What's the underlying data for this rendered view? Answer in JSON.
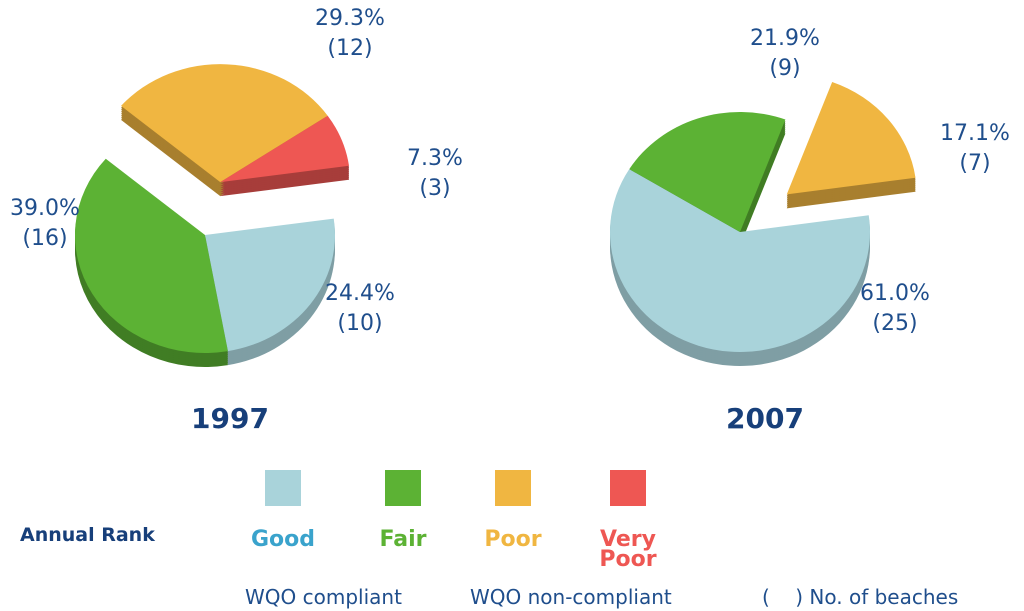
{
  "chart_data": [
    {
      "type": "pie",
      "title": "1997",
      "categories": [
        "Good",
        "Fair",
        "Poor",
        "Very Poor"
      ],
      "values": [
        24.4,
        39.0,
        29.3,
        7.3
      ],
      "value_labels": [
        "24.4%",
        "39.0%",
        "29.3%",
        "7.3%"
      ],
      "counts": [
        10,
        16,
        12,
        3
      ],
      "count_labels": [
        "(10)",
        "(16)",
        "(12)",
        "(3)"
      ],
      "colors": [
        "#a9d3da",
        "#5cb234",
        "#f0b641",
        "#ee5753"
      ],
      "exploded": [
        false,
        false,
        true,
        true
      ]
    },
    {
      "type": "pie",
      "title": "2007",
      "categories": [
        "Good",
        "Fair",
        "Poor"
      ],
      "values": [
        61.0,
        21.9,
        17.1
      ],
      "value_labels": [
        "61.0%",
        "21.9%",
        "17.1%"
      ],
      "counts": [
        25,
        9,
        7
      ],
      "count_labels": [
        "(25)",
        "(9)",
        "(7)"
      ],
      "colors": [
        "#a9d3da",
        "#5cb234",
        "#f0b641"
      ],
      "exploded": [
        false,
        false,
        true
      ]
    }
  ],
  "legend": {
    "title": "Annual Rank",
    "items": [
      {
        "label": "Good",
        "color": "#a9d3da",
        "text_color": "#3aa3cc"
      },
      {
        "label": "Fair",
        "color": "#5cb234",
        "text_color": "#5cb234"
      },
      {
        "label": "Poor",
        "color": "#f0b641",
        "text_color": "#f0b641"
      },
      {
        "label": "Very Poor",
        "color": "#ee5753",
        "text_color": "#ee5753"
      }
    ],
    "notes": [
      "WQO compliant",
      "WQO non-compliant",
      "(    ) No. of beaches"
    ]
  }
}
